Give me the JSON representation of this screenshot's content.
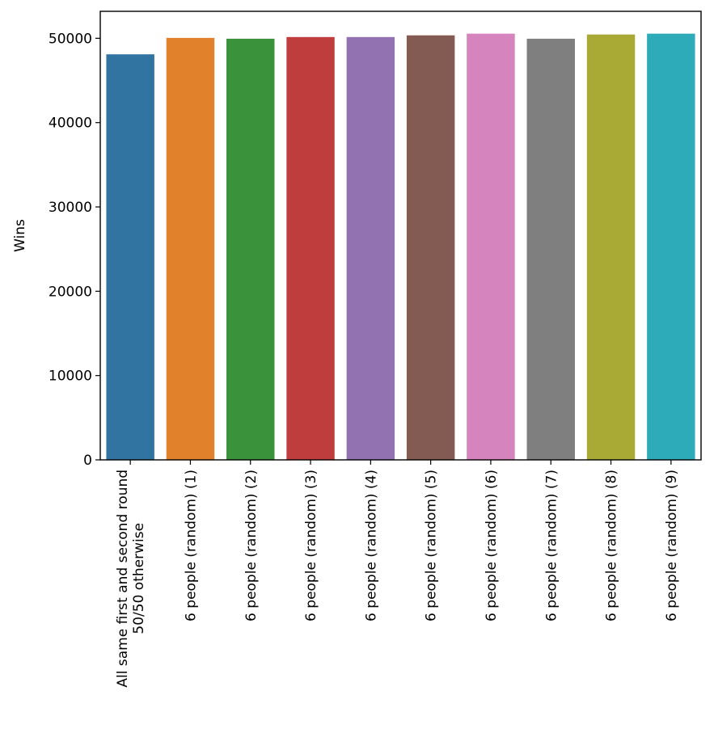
{
  "chart_data": {
    "type": "bar",
    "ylabel": "Wins",
    "xlabel": "",
    "title": "",
    "ylim": [
      0,
      53200
    ],
    "yticks": [
      0,
      10000,
      20000,
      30000,
      40000,
      50000
    ],
    "categories": [
      [
        "All same first and second round",
        "50/50 otherwise"
      ],
      [
        "6 people (random) (1)"
      ],
      [
        "6 people (random) (2)"
      ],
      [
        "6 people (random) (3)"
      ],
      [
        "6 people (random) (4)"
      ],
      [
        "6 people (random) (5)"
      ],
      [
        "6 people (random) (6)"
      ],
      [
        "6 people (random) (7)"
      ],
      [
        "6 people (random) (8)"
      ],
      [
        "6 people (random) (9)"
      ]
    ],
    "values": [
      48100,
      50050,
      49950,
      50150,
      50150,
      50350,
      50550,
      49950,
      50450,
      50550
    ],
    "colors": [
      "#3274a1",
      "#e1812c",
      "#3a923a",
      "#c03d3e",
      "#9372b2",
      "#845b53",
      "#d684bd",
      "#7f7f7f",
      "#a9aa35",
      "#2eabb8"
    ],
    "grid": false,
    "legend": "none"
  }
}
